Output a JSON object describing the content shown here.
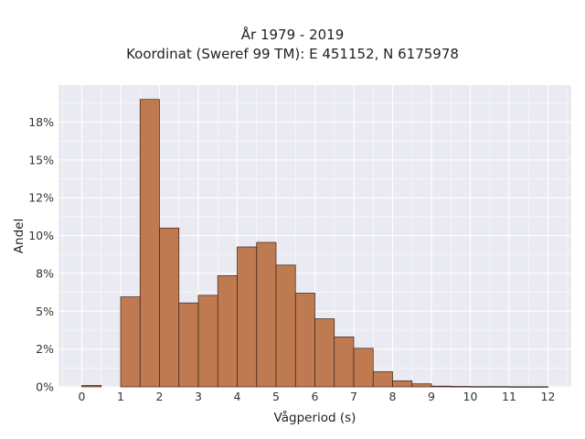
{
  "title": "År 1979 - 2019",
  "subtitle": "Koordinat (Sweref 99 TM): E 451152, N 6175978",
  "chart_data": {
    "type": "bar",
    "title": "År 1979 - 2019",
    "subtitle": "Koordinat (Sweref 99 TM): E 451152, N 6175978",
    "xlabel": "Vågperiod (s)",
    "ylabel": "Andel",
    "xlim": [
      -0.6,
      12.6
    ],
    "ylim": [
      0,
      0.1995
    ],
    "xticks": [
      0,
      1,
      2,
      3,
      4,
      5,
      6,
      7,
      8,
      9,
      10,
      11,
      12
    ],
    "xtick_labels": [
      "0",
      "1",
      "2",
      "3",
      "4",
      "5",
      "6",
      "7",
      "8",
      "9",
      "10",
      "11",
      "12"
    ],
    "yticks": [
      0,
      0.025,
      0.05,
      0.075,
      0.1,
      0.125,
      0.15,
      0.175
    ],
    "ytick_labels": [
      "0%",
      "2%",
      "5%",
      "8%",
      "10%",
      "12%",
      "15%",
      "18%"
    ],
    "bin_width": 0.5,
    "bins": [
      {
        "x0": 0.0,
        "value": 0.001
      },
      {
        "x0": 1.0,
        "value": 0.0595
      },
      {
        "x0": 1.5,
        "value": 0.19
      },
      {
        "x0": 2.0,
        "value": 0.105
      },
      {
        "x0": 2.5,
        "value": 0.0555
      },
      {
        "x0": 3.0,
        "value": 0.0605
      },
      {
        "x0": 3.5,
        "value": 0.0735
      },
      {
        "x0": 4.0,
        "value": 0.0925
      },
      {
        "x0": 4.5,
        "value": 0.0955
      },
      {
        "x0": 5.0,
        "value": 0.0805
      },
      {
        "x0": 5.5,
        "value": 0.062
      },
      {
        "x0": 6.0,
        "value": 0.045
      },
      {
        "x0": 6.5,
        "value": 0.033
      },
      {
        "x0": 7.0,
        "value": 0.0255
      },
      {
        "x0": 7.5,
        "value": 0.01
      },
      {
        "x0": 8.0,
        "value": 0.004
      },
      {
        "x0": 8.5,
        "value": 0.002
      },
      {
        "x0": 9.0,
        "value": 0.0005
      },
      {
        "x0": 9.5,
        "value": 0.0003
      },
      {
        "x0": 10.0,
        "value": 0.0002
      },
      {
        "x0": 10.5,
        "value": 0.0002
      },
      {
        "x0": 11.0,
        "value": 0.0001
      },
      {
        "x0": 11.5,
        "value": 0.0001
      }
    ],
    "bar_color": "#c07a52",
    "bar_edge_color": "#3a2418",
    "background_color": "#eaeaf2",
    "grid": true,
    "grid_color": "#ffffff",
    "legend": "none"
  }
}
